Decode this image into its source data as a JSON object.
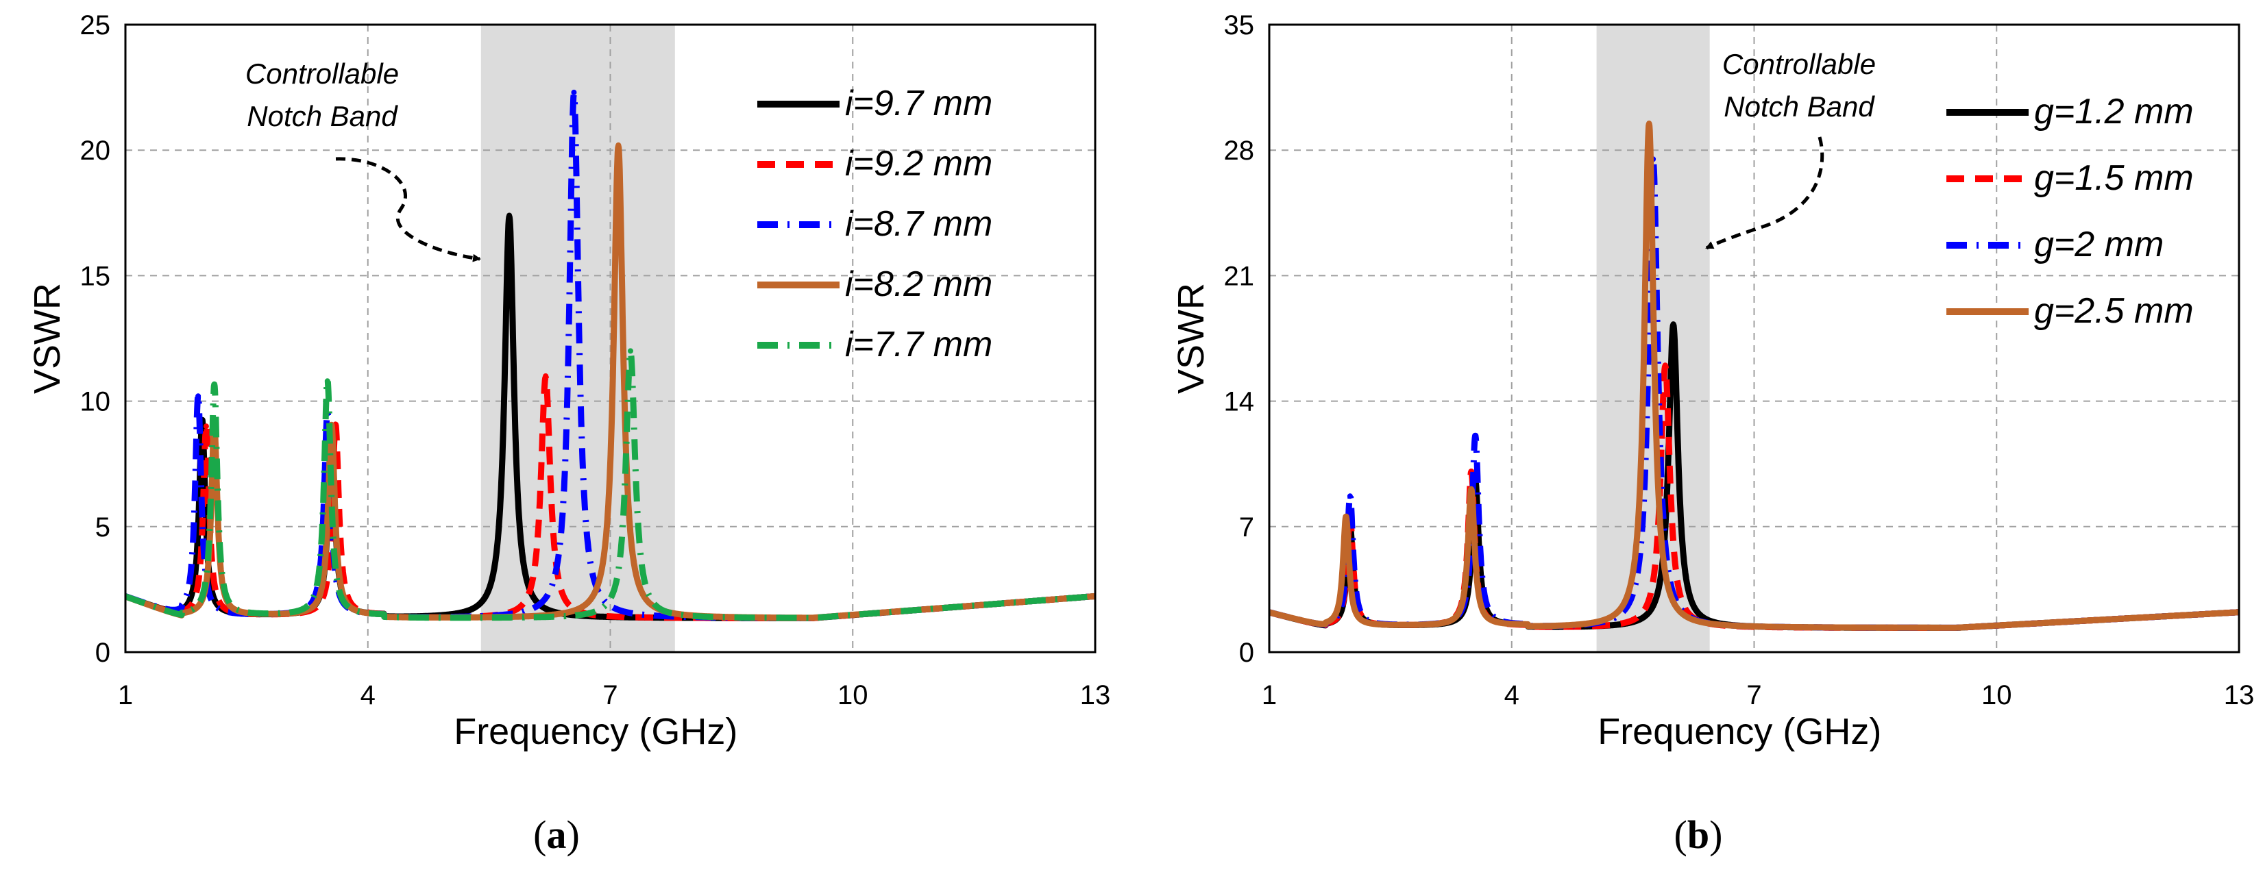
{
  "chart_data": [
    {
      "type": "line",
      "panel_label": "(a)",
      "panel_letter": "a",
      "xlabel": "Frequency (GHz)",
      "ylabel": "VSWR",
      "xlim": [
        1,
        13
      ],
      "ylim": [
        0,
        25
      ],
      "xticks": [
        1,
        4,
        7,
        10,
        13
      ],
      "yticks": [
        0,
        5,
        10,
        15,
        20,
        25
      ],
      "grid": true,
      "legend_position": "top-right",
      "notch_band": [
        5.4,
        7.8
      ],
      "annotation": {
        "lines": [
          "Controllable",
          "Notch Band"
        ],
        "points_to": [
          5.8,
          15.5
        ]
      },
      "series": [
        {
          "name": "i=9.7 mm",
          "color": "#000000",
          "style": "solid",
          "peaks": [
            {
              "f": 1.95,
              "v": 9.2,
              "w": 0.045
            },
            {
              "f": 3.55,
              "v": 8.5,
              "w": 0.05
            },
            {
              "f": 5.75,
              "v": 17.4,
              "w": 0.07
            }
          ]
        },
        {
          "name": "i=9.2 mm",
          "color": "#ff0000",
          "style": "dash",
          "peaks": [
            {
              "f": 2.0,
              "v": 9.0,
              "w": 0.045
            },
            {
              "f": 3.6,
              "v": 9.0,
              "w": 0.05
            },
            {
              "f": 6.2,
              "v": 11.0,
              "w": 0.07
            }
          ]
        },
        {
          "name": "i=8.7 mm",
          "color": "#0000ff",
          "style": "dashdot",
          "peaks": [
            {
              "f": 1.9,
              "v": 10.2,
              "w": 0.045
            },
            {
              "f": 3.5,
              "v": 9.5,
              "w": 0.05
            },
            {
              "f": 6.55,
              "v": 22.3,
              "w": 0.07
            }
          ]
        },
        {
          "name": "i=8.2 mm",
          "color": "#c0662a",
          "style": "solid",
          "peaks": [
            {
              "f": 2.1,
              "v": 9.0,
              "w": 0.045
            },
            {
              "f": 3.55,
              "v": 9.0,
              "w": 0.05
            },
            {
              "f": 7.1,
              "v": 20.2,
              "w": 0.07
            }
          ]
        },
        {
          "name": "i=7.7 mm",
          "color": "#1aa84a",
          "style": "dashdot",
          "peaks": [
            {
              "f": 2.1,
              "v": 10.6,
              "w": 0.045
            },
            {
              "f": 3.5,
              "v": 10.8,
              "w": 0.05
            },
            {
              "f": 7.25,
              "v": 12.0,
              "w": 0.07
            }
          ]
        }
      ]
    },
    {
      "type": "line",
      "panel_label": "(b)",
      "panel_letter": "b",
      "xlabel": "Frequency (GHz)",
      "ylabel": "VSWR",
      "xlim": [
        1,
        13
      ],
      "ylim": [
        0,
        35
      ],
      "xticks": [
        1,
        4,
        7,
        10,
        13
      ],
      "yticks": [
        0,
        7,
        14,
        21,
        28,
        35
      ],
      "grid": true,
      "legend_position": "top-right",
      "notch_band": [
        5.05,
        6.45
      ],
      "annotation": {
        "lines": [
          "Controllable",
          "Notch Band"
        ],
        "points_to": [
          6.35,
          22.0
        ]
      },
      "series": [
        {
          "name": "g=1.2 mm",
          "color": "#000000",
          "style": "solid",
          "peaks": [
            {
              "f": 2.0,
              "v": 7.0,
              "w": 0.045
            },
            {
              "f": 3.55,
              "v": 9.5,
              "w": 0.05
            },
            {
              "f": 6.0,
              "v": 18.3,
              "w": 0.07
            }
          ]
        },
        {
          "name": "g=1.5 mm",
          "color": "#ff0000",
          "style": "dash",
          "peaks": [
            {
              "f": 2.0,
              "v": 7.5,
              "w": 0.045
            },
            {
              "f": 3.5,
              "v": 10.0,
              "w": 0.05
            },
            {
              "f": 5.9,
              "v": 16.0,
              "w": 0.07
            }
          ]
        },
        {
          "name": "g=2 mm",
          "color": "#0000ff",
          "style": "dashdot",
          "peaks": [
            {
              "f": 2.0,
              "v": 8.7,
              "w": 0.045
            },
            {
              "f": 3.55,
              "v": 12.0,
              "w": 0.05
            },
            {
              "f": 5.75,
              "v": 27.5,
              "w": 0.07
            }
          ]
        },
        {
          "name": "g=2.5 mm",
          "color": "#c0662a",
          "style": "solid",
          "peaks": [
            {
              "f": 1.95,
              "v": 7.5,
              "w": 0.045
            },
            {
              "f": 3.5,
              "v": 9.0,
              "w": 0.05
            },
            {
              "f": 5.7,
              "v": 29.5,
              "w": 0.07
            }
          ]
        }
      ]
    }
  ]
}
